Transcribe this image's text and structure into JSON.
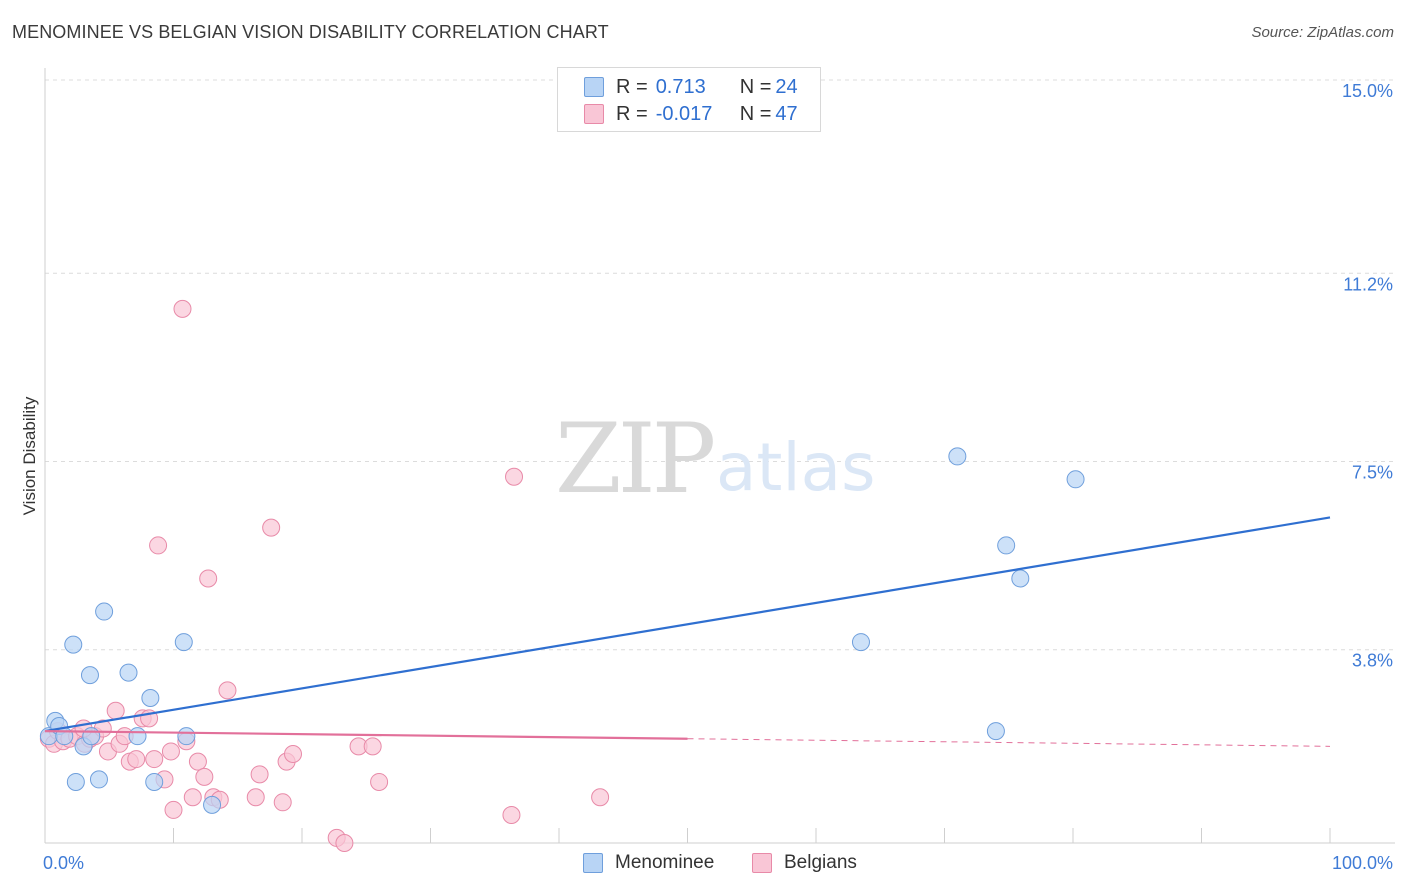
{
  "title": "MENOMINEE VS BELGIAN VISION DISABILITY CORRELATION CHART",
  "source": "Source: ZipAtlas.com",
  "watermark": {
    "zip": "ZIP",
    "atlas": "atlas"
  },
  "colors": {
    "menominee_fill": "#b8d4f5",
    "menominee_stroke": "#6f9fdc",
    "menominee_line": "#2f6fd0",
    "belgians_fill": "#f9c6d6",
    "belgians_stroke": "#e88aa8",
    "belgians_line": "#e2709a"
  },
  "legend": {
    "rows": [
      {
        "r_label": "R = ",
        "r_value": " 0.713",
        "n_label": "N = ",
        "n_value": "24"
      },
      {
        "r_label": "R = ",
        "r_value": "-0.017",
        "n_label": "N = ",
        "n_value": "47"
      }
    ]
  },
  "chart_data": {
    "type": "scatter",
    "title": "MENOMINEE VS BELGIAN VISION DISABILITY CORRELATION CHART",
    "ylabel": "Vision Disability",
    "xlabel": "",
    "xlim": [
      0,
      100
    ],
    "ylim": [
      0,
      15.0
    ],
    "y_ticks": [
      {
        "value": 3.8,
        "label": "3.8%"
      },
      {
        "value": 7.5,
        "label": "7.5%"
      },
      {
        "value": 11.2,
        "label": "11.2%"
      },
      {
        "value": 15.0,
        "label": "15.0%"
      }
    ],
    "x_ticks": [
      {
        "value": 0,
        "label": "0.0%"
      },
      {
        "value": 100,
        "label": "100.0%"
      }
    ],
    "series": [
      {
        "name": "Menominee",
        "trend": {
          "x": [
            0,
            100
          ],
          "y": [
            2.2,
            6.4
          ]
        },
        "points": [
          [
            0.3,
            2.1
          ],
          [
            0.8,
            2.4
          ],
          [
            1.1,
            2.3
          ],
          [
            1.5,
            2.1
          ],
          [
            2.2,
            3.9
          ],
          [
            2.4,
            1.2
          ],
          [
            3.0,
            1.9
          ],
          [
            3.5,
            3.3
          ],
          [
            3.6,
            2.1
          ],
          [
            4.2,
            1.25
          ],
          [
            4.6,
            4.55
          ],
          [
            6.5,
            3.35
          ],
          [
            7.2,
            2.1
          ],
          [
            8.2,
            2.85
          ],
          [
            8.5,
            1.2
          ],
          [
            10.8,
            3.95
          ],
          [
            11.0,
            2.1
          ],
          [
            13.0,
            0.75
          ],
          [
            63.5,
            3.95
          ],
          [
            71.0,
            7.6
          ],
          [
            74.8,
            5.85
          ],
          [
            75.9,
            5.2
          ],
          [
            80.2,
            7.15
          ],
          [
            74.0,
            2.2
          ]
        ]
      },
      {
        "name": "Belgians",
        "trend": {
          "x": [
            0,
            50
          ],
          "y": [
            2.2,
            2.05
          ],
          "dashed_to": {
            "x": 100,
            "y": 1.9
          }
        },
        "points": [
          [
            0.3,
            2.05
          ],
          [
            0.7,
            1.95
          ],
          [
            1.0,
            2.2
          ],
          [
            1.4,
            2.0
          ],
          [
            1.9,
            2.05
          ],
          [
            2.5,
            2.1
          ],
          [
            3.1,
            1.95
          ],
          [
            3.5,
            2.05
          ],
          [
            3.9,
            2.1
          ],
          [
            4.5,
            2.25
          ],
          [
            4.9,
            1.8
          ],
          [
            5.5,
            2.6
          ],
          [
            5.8,
            1.95
          ],
          [
            6.2,
            2.1
          ],
          [
            6.6,
            1.6
          ],
          [
            7.1,
            1.65
          ],
          [
            7.6,
            2.45
          ],
          [
            8.1,
            2.45
          ],
          [
            8.5,
            1.65
          ],
          [
            8.8,
            5.85
          ],
          [
            9.3,
            1.25
          ],
          [
            9.8,
            1.8
          ],
          [
            10.0,
            0.65
          ],
          [
            10.7,
            10.5
          ],
          [
            11.0,
            2.0
          ],
          [
            11.5,
            0.9
          ],
          [
            11.9,
            1.6
          ],
          [
            12.4,
            1.3
          ],
          [
            12.7,
            5.2
          ],
          [
            13.1,
            0.9
          ],
          [
            13.6,
            0.85
          ],
          [
            14.2,
            3.0
          ],
          [
            16.4,
            0.9
          ],
          [
            16.7,
            1.35
          ],
          [
            17.6,
            6.2
          ],
          [
            18.5,
            0.8
          ],
          [
            18.8,
            1.6
          ],
          [
            19.3,
            1.75
          ],
          [
            22.7,
            0.1
          ],
          [
            23.3,
            0.0
          ],
          [
            24.4,
            1.9
          ],
          [
            25.5,
            1.9
          ],
          [
            26.0,
            1.2
          ],
          [
            36.3,
            0.55
          ],
          [
            36.5,
            7.2
          ],
          [
            43.2,
            0.9
          ],
          [
            3.0,
            2.25
          ]
        ]
      }
    ],
    "legend_position": "top-center",
    "bottom_legend": [
      "Menominee",
      "Belgians"
    ],
    "grid": true
  }
}
